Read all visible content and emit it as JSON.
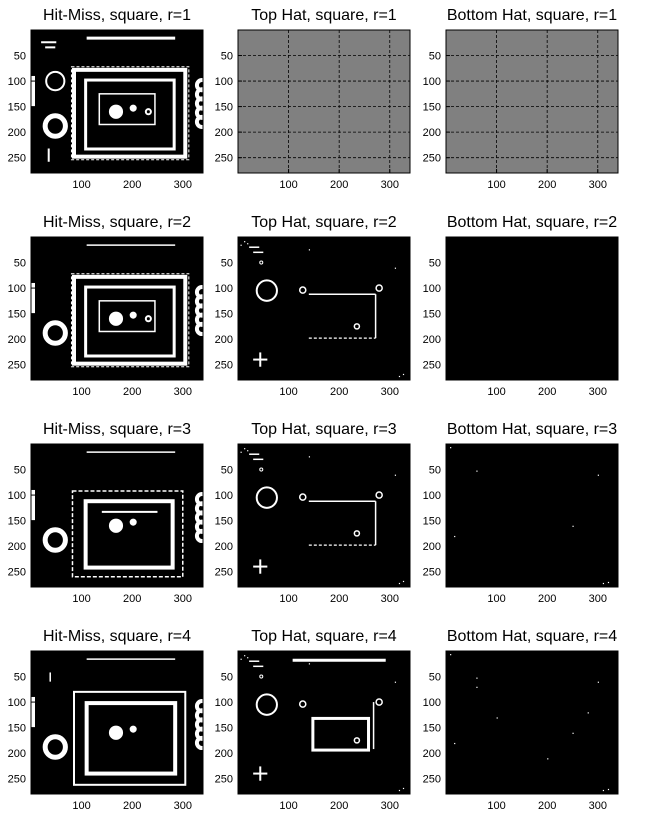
{
  "panels": [
    {
      "title": "Hit-Miss, square, r=1",
      "kind": "hitmiss",
      "r": 1
    },
    {
      "title": "Top Hat, square, r=1",
      "kind": "gray",
      "r": 1
    },
    {
      "title": "Bottom Hat, square, r=1",
      "kind": "gray",
      "r": 1
    },
    {
      "title": "Hit-Miss, square, r=2",
      "kind": "hitmiss",
      "r": 2
    },
    {
      "title": "Top Hat, square, r=2",
      "kind": "tophat",
      "r": 2
    },
    {
      "title": "Bottom Hat, square, r=2",
      "kind": "black",
      "r": 2
    },
    {
      "title": "Hit-Miss, square, r=3",
      "kind": "hitmiss",
      "r": 3
    },
    {
      "title": "Top Hat, square, r=3",
      "kind": "tophat",
      "r": 3
    },
    {
      "title": "Bottom Hat, square, r=3",
      "kind": "black",
      "r": 3
    },
    {
      "title": "Hit-Miss, square, r=4",
      "kind": "hitmiss",
      "r": 4
    },
    {
      "title": "Top Hat, square, r=4",
      "kind": "tophat",
      "r": 4
    },
    {
      "title": "Bottom Hat, square, r=4",
      "kind": "black",
      "r": 4
    }
  ],
  "x_ticks": [
    "100",
    "200",
    "300"
  ],
  "y_ticks": [
    "50",
    "100",
    "150",
    "200",
    "250"
  ],
  "colors": {
    "image_bg": "#000000",
    "foreground": "#ffffff",
    "gray_fill": "#808080"
  }
}
